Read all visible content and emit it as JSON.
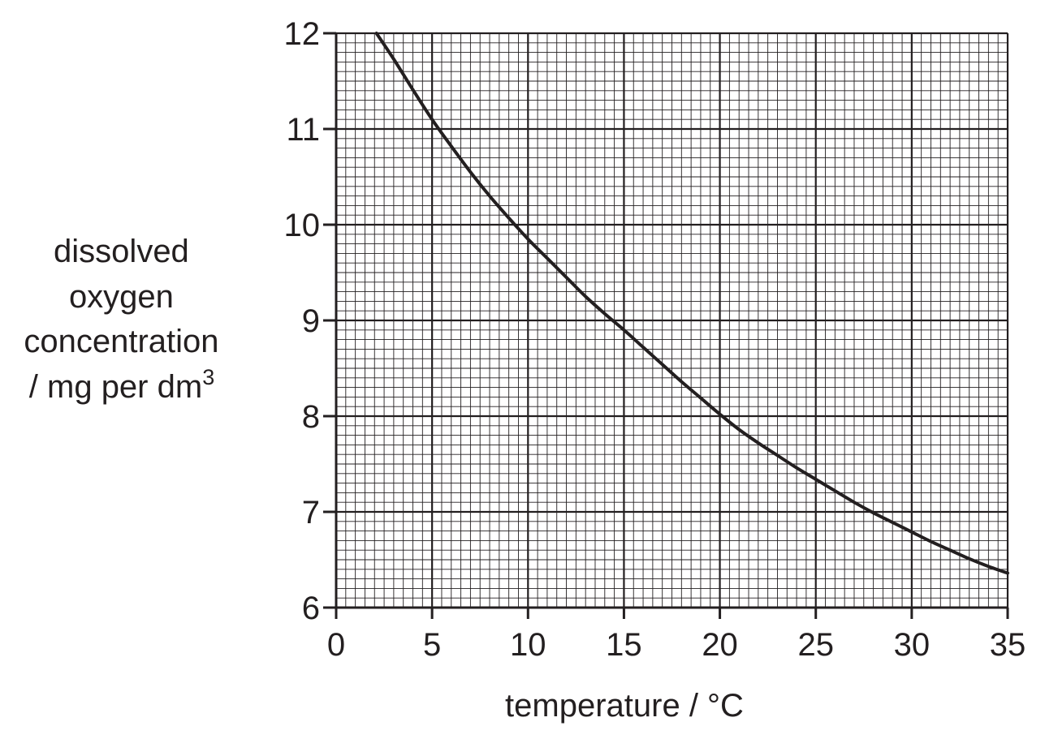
{
  "chart_data": {
    "type": "line",
    "title": "",
    "xlabel": "temperature / °C",
    "ylabel_lines": [
      "dissolved",
      "oxygen",
      "concentration",
      "/ mg per dm"
    ],
    "ylabel_superscript": "3",
    "xlim": [
      0,
      35
    ],
    "ylim": [
      6,
      12
    ],
    "x_ticks": [
      0,
      5,
      10,
      15,
      20,
      25,
      30,
      35
    ],
    "y_ticks": [
      6,
      7,
      8,
      9,
      10,
      11,
      12
    ],
    "grid": true,
    "minor_divisions": 10,
    "line_color": "#231f20",
    "grid_color": "#231f20",
    "series": [
      {
        "x": [
          2.1,
          3,
          4,
          5,
          6,
          7,
          8,
          9,
          10,
          11,
          12,
          13,
          14,
          15,
          16,
          17,
          18,
          19,
          20,
          21,
          22,
          23,
          24,
          25,
          26,
          27,
          28,
          29,
          30,
          31,
          32,
          33,
          34,
          35
        ],
        "values": [
          12.0,
          11.73,
          11.41,
          11.1,
          10.82,
          10.55,
          10.3,
          10.07,
          9.85,
          9.65,
          9.45,
          9.25,
          9.07,
          8.9,
          8.72,
          8.54,
          8.36,
          8.19,
          8.02,
          7.86,
          7.72,
          7.59,
          7.46,
          7.34,
          7.22,
          7.1,
          6.99,
          6.89,
          6.79,
          6.69,
          6.6,
          6.51,
          6.43,
          6.36
        ]
      }
    ]
  }
}
